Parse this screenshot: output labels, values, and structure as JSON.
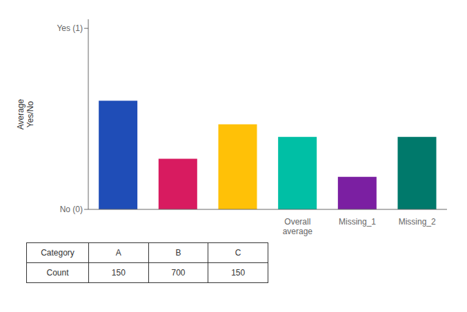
{
  "chart_data": {
    "type": "bar",
    "categories": [
      null,
      null,
      null,
      "Overall\naverage",
      "Missing_1",
      "Missing_2"
    ],
    "values": [
      0.6,
      0.28,
      0.47,
      0.4,
      0.18,
      0.4
    ],
    "colors": [
      "#1F4DB7",
      "#D81B60",
      "#FFC107",
      "#00BFA5",
      "#7B1FA2",
      "#00796B"
    ],
    "ylabel": "Average\nYes/No",
    "ylim": [
      0,
      1.05
    ],
    "yticks": [
      {
        "value": 0,
        "label": "No (0)"
      },
      {
        "value": 1,
        "label": "Yes (1)"
      }
    ],
    "grid": false,
    "table": {
      "header": "Category",
      "columns": [
        "A",
        "B",
        "C"
      ],
      "row": "Count",
      "counts": [
        150,
        700,
        150
      ]
    }
  }
}
